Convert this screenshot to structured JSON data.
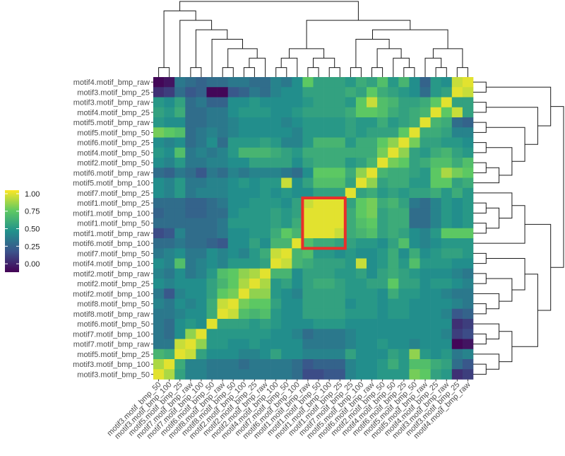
{
  "chart_data": {
    "type": "heatmap",
    "title": "",
    "row_labels": [
      "motif4.motif_bmp_raw",
      "motif3.motif_bmp_25",
      "motif3.motif_bmp_raw",
      "motif4.motif_bmp_25",
      "motif5.motif_bmp_raw",
      "motif5.motif_bmp_50",
      "motif6.motif_bmp_25",
      "motif4.motif_bmp_50",
      "motif2.motif_bmp_50",
      "motif6.motif_bmp_raw",
      "motif5.motif_bmp_100",
      "motif7.motif_bmp_25",
      "motif1.motif_bmp_25",
      "motif1.motif_bmp_100",
      "motif1.motif_bmp_50",
      "motif1.motif_bmp_raw",
      "motif6.motif_bmp_100",
      "motif7.motif_bmp_50",
      "motif4.motif_bmp_100",
      "motif2.motif_bmp_raw",
      "motif2.motif_bmp_25",
      "motif2.motif_bmp_100",
      "motif8.motif_bmp_50",
      "motif8.motif_bmp_raw",
      "motif6.motif_bmp_50",
      "motif7.motif_bmp_100",
      "motif7.motif_bmp_raw",
      "motif5.motif_bmp_25",
      "motif3.motif_bmp_100",
      "motif3.motif_bmp_50"
    ],
    "col_labels": [
      "motif3.motif_bmp_50",
      "motif3.motif_bmp_100",
      "motif5.motif_bmp_25",
      "motif7.motif_bmp_raw",
      "motif7.motif_bmp_100",
      "motif6.motif_bmp_50",
      "motif8.motif_bmp_raw",
      "motif8.motif_bmp_50",
      "motif2.motif_bmp_100",
      "motif2.motif_bmp_25",
      "motif2.motif_bmp_raw",
      "motif4.motif_bmp_100",
      "motif7.motif_bmp_50",
      "motif6.motif_bmp_100",
      "motif1.motif_bmp_raw",
      "motif1.motif_bmp_50",
      "motif1.motif_bmp_100",
      "motif1.motif_bmp_25",
      "motif7.motif_bmp_25",
      "motif5.motif_bmp_100",
      "motif6.motif_bmp_raw",
      "motif2.motif_bmp_50",
      "motif4.motif_bmp_50",
      "motif6.motif_bmp_25",
      "motif5.motif_bmp_50",
      "motif5.motif_bmp_raw",
      "motif4.motif_bmp_25",
      "motif3.motif_bmp_raw",
      "motif3.motif_bmp_25",
      "motif4.motif_bmp_raw"
    ],
    "values": [
      [
        -0.1,
        -0.05,
        0.35,
        0.3,
        0.25,
        0.3,
        0.3,
        0.35,
        0.35,
        0.3,
        0.3,
        0.4,
        0.35,
        0.45,
        0.75,
        0.55,
        0.55,
        0.55,
        0.5,
        0.6,
        0.55,
        0.7,
        0.5,
        0.65,
        0.45,
        0.25,
        0.5,
        0.45,
        0.95,
        1
      ],
      [
        0.05,
        0.1,
        0.3,
        0.2,
        0.25,
        -0.1,
        -0.1,
        0.2,
        0.25,
        0.35,
        0.3,
        0.4,
        0.45,
        0.45,
        0.55,
        0.55,
        0.55,
        0.55,
        0.6,
        0.55,
        0.75,
        0.6,
        0.55,
        0.5,
        0.45,
        0.3,
        0.5,
        0.55,
        1,
        0.95
      ],
      [
        0.5,
        0.45,
        0.55,
        0.3,
        0.35,
        0.25,
        0.25,
        0.45,
        0.45,
        0.5,
        0.45,
        0.45,
        0.45,
        0.45,
        0.5,
        0.55,
        0.55,
        0.55,
        0.5,
        0.75,
        0.95,
        0.7,
        0.65,
        0.55,
        0.55,
        0.6,
        0.75,
        1,
        0.55,
        0.55
      ],
      [
        0.55,
        0.5,
        0.6,
        0.3,
        0.3,
        0.35,
        0.35,
        0.45,
        0.5,
        0.5,
        0.5,
        0.45,
        0.45,
        0.5,
        0.55,
        0.55,
        0.55,
        0.55,
        0.6,
        0.75,
        0.75,
        0.7,
        0.6,
        0.55,
        0.6,
        0.65,
        1,
        0.75,
        0.95,
        0.55
      ],
      [
        0.5,
        0.45,
        0.45,
        0.3,
        0.3,
        0.35,
        0.35,
        0.4,
        0.45,
        0.45,
        0.45,
        0.45,
        0.4,
        0.45,
        0.5,
        0.5,
        0.5,
        0.5,
        0.55,
        0.5,
        0.5,
        0.6,
        0.5,
        0.55,
        0.6,
        1,
        0.65,
        0.6,
        0.3,
        0.25
      ],
      [
        0.8,
        0.75,
        0.7,
        0.3,
        0.35,
        0.4,
        0.35,
        0.4,
        0.45,
        0.45,
        0.45,
        0.45,
        0.45,
        0.4,
        0.5,
        0.5,
        0.5,
        0.5,
        0.55,
        0.5,
        0.55,
        0.55,
        0.55,
        0.75,
        1,
        0.6,
        0.6,
        0.55,
        0.4,
        0.4
      ],
      [
        0.45,
        0.4,
        0.45,
        0.3,
        0.35,
        0.45,
        0.3,
        0.5,
        0.5,
        0.5,
        0.55,
        0.5,
        0.4,
        0.4,
        0.5,
        0.65,
        0.65,
        0.65,
        0.5,
        0.6,
        0.6,
        0.75,
        0.85,
        1,
        0.8,
        0.55,
        0.55,
        0.5,
        0.5,
        0.45
      ],
      [
        0.5,
        0.45,
        0.7,
        0.35,
        0.4,
        0.35,
        0.4,
        0.5,
        0.65,
        0.65,
        0.65,
        0.6,
        0.55,
        0.5,
        0.6,
        0.6,
        0.6,
        0.6,
        0.6,
        0.6,
        0.6,
        0.8,
        1,
        0.85,
        0.55,
        0.5,
        0.6,
        0.65,
        0.55,
        0.5
      ],
      [
        0.45,
        0.4,
        0.5,
        0.35,
        0.35,
        0.4,
        0.4,
        0.45,
        0.45,
        0.55,
        0.55,
        0.55,
        0.55,
        0.45,
        0.55,
        0.6,
        0.6,
        0.6,
        0.5,
        0.55,
        0.65,
        1,
        0.8,
        0.75,
        0.55,
        0.6,
        0.7,
        0.7,
        0.6,
        0.7
      ],
      [
        0.3,
        0.25,
        0.35,
        0.3,
        0.2,
        0.35,
        0.3,
        0.4,
        0.35,
        0.4,
        0.4,
        0.4,
        0.35,
        0.3,
        0.45,
        0.75,
        0.75,
        0.75,
        0.6,
        0.85,
        1,
        0.65,
        0.6,
        0.6,
        0.55,
        0.5,
        0.75,
        0.9,
        0.8,
        0.75
      ],
      [
        0.45,
        0.4,
        0.5,
        0.35,
        0.35,
        0.4,
        0.4,
        0.45,
        0.5,
        0.45,
        0.5,
        0.5,
        0.95,
        0.45,
        0.55,
        0.7,
        0.7,
        0.7,
        0.55,
        1,
        0.85,
        0.55,
        0.6,
        0.6,
        0.5,
        0.5,
        0.75,
        0.75,
        0.55,
        0.6
      ],
      [
        0.45,
        0.4,
        0.5,
        0.35,
        0.4,
        0.4,
        0.4,
        0.45,
        0.45,
        0.45,
        0.5,
        0.45,
        0.5,
        0.45,
        0.45,
        0.55,
        0.55,
        0.55,
        1,
        0.55,
        0.6,
        0.5,
        0.55,
        0.5,
        0.55,
        0.55,
        0.6,
        0.5,
        0.6,
        0.5
      ],
      [
        0.3,
        0.3,
        0.3,
        0.25,
        0.25,
        0.3,
        0.35,
        0.45,
        0.45,
        0.5,
        0.5,
        0.5,
        0.45,
        0.55,
        0.95,
        1,
        1,
        1,
        0.55,
        0.75,
        0.8,
        0.6,
        0.65,
        0.55,
        0.35,
        0.3,
        0.4,
        0.5,
        0.45,
        0.5
      ],
      [
        0.25,
        0.3,
        0.3,
        0.25,
        0.25,
        0.3,
        0.3,
        0.45,
        0.5,
        0.5,
        0.5,
        0.55,
        0.5,
        0.55,
        1,
        1,
        1,
        1,
        0.6,
        0.75,
        0.8,
        0.55,
        0.6,
        0.6,
        0.3,
        0.3,
        0.4,
        0.5,
        0.45,
        0.5
      ],
      [
        0.3,
        0.3,
        0.3,
        0.3,
        0.3,
        0.3,
        0.35,
        0.5,
        0.5,
        0.5,
        0.5,
        0.55,
        0.5,
        0.6,
        1,
        1,
        1,
        1,
        0.6,
        0.7,
        0.75,
        0.55,
        0.6,
        0.6,
        0.3,
        0.3,
        0.4,
        0.5,
        0.45,
        0.5
      ],
      [
        0.15,
        0.2,
        0.4,
        0.3,
        0.3,
        0.3,
        0.35,
        0.45,
        0.45,
        0.5,
        0.5,
        0.6,
        0.75,
        0.65,
        1,
        1,
        1,
        0.95,
        0.6,
        0.65,
        0.7,
        0.55,
        0.6,
        0.55,
        0.45,
        0.4,
        0.5,
        0.75,
        0.75,
        0.75
      ],
      [
        0.3,
        0.3,
        0.35,
        0.3,
        0.3,
        0.25,
        0.2,
        0.45,
        0.45,
        0.55,
        0.45,
        0.65,
        0.65,
        1,
        0.7,
        0.6,
        0.6,
        0.55,
        0.55,
        0.5,
        0.5,
        0.45,
        0.55,
        0.7,
        0.45,
        0.4,
        0.45,
        0.5,
        0.5,
        0.5
      ],
      [
        0.35,
        0.4,
        0.45,
        0.35,
        0.35,
        0.45,
        0.4,
        0.45,
        0.4,
        0.5,
        0.6,
        0.95,
        1,
        0.65,
        0.7,
        0.5,
        0.5,
        0.45,
        0.5,
        0.45,
        0.45,
        0.5,
        0.6,
        0.45,
        0.6,
        0.45,
        0.5,
        0.55,
        0.55,
        0.5
      ],
      [
        0.45,
        0.4,
        0.7,
        0.35,
        0.4,
        0.45,
        0.4,
        0.5,
        0.5,
        0.5,
        0.55,
        1,
        0.95,
        0.65,
        0.6,
        0.55,
        0.55,
        0.55,
        0.5,
        0.95,
        0.45,
        0.5,
        0.6,
        0.5,
        0.7,
        0.5,
        0.5,
        0.5,
        0.45,
        0.45
      ],
      [
        0.4,
        0.35,
        0.45,
        0.35,
        0.4,
        0.5,
        0.7,
        0.75,
        0.85,
        0.9,
        1,
        0.65,
        0.65,
        0.45,
        0.55,
        0.55,
        0.55,
        0.5,
        0.5,
        0.55,
        0.45,
        0.55,
        0.6,
        0.55,
        0.5,
        0.45,
        0.45,
        0.45,
        0.4,
        0.35
      ],
      [
        0.45,
        0.4,
        0.45,
        0.45,
        0.45,
        0.55,
        0.65,
        0.75,
        0.9,
        1,
        0.9,
        0.5,
        0.55,
        0.45,
        0.55,
        0.6,
        0.6,
        0.55,
        0.5,
        0.5,
        0.55,
        0.55,
        0.75,
        0.55,
        0.55,
        0.45,
        0.5,
        0.5,
        0.45,
        0.4
      ],
      [
        0.35,
        0.2,
        0.4,
        0.45,
        0.45,
        0.55,
        0.75,
        0.8,
        1,
        0.85,
        0.85,
        0.5,
        0.45,
        0.4,
        0.55,
        0.55,
        0.55,
        0.55,
        0.5,
        0.5,
        0.5,
        0.45,
        0.6,
        0.5,
        0.5,
        0.45,
        0.45,
        0.4,
        0.35,
        0.35
      ],
      [
        0.4,
        0.35,
        0.45,
        0.4,
        0.45,
        0.6,
        0.95,
        1,
        0.8,
        0.75,
        0.75,
        0.55,
        0.45,
        0.45,
        0.55,
        0.55,
        0.55,
        0.55,
        0.45,
        0.5,
        0.5,
        0.45,
        0.5,
        0.5,
        0.45,
        0.45,
        0.45,
        0.45,
        0.4,
        0.35
      ],
      [
        0.35,
        0.35,
        0.4,
        0.45,
        0.45,
        0.6,
        1,
        0.95,
        0.7,
        0.65,
        0.7,
        0.5,
        0.45,
        0.45,
        0.55,
        0.55,
        0.55,
        0.55,
        0.5,
        0.5,
        0.5,
        0.45,
        0.5,
        0.5,
        0.45,
        0.45,
        0.45,
        0.4,
        0.2,
        0.25
      ],
      [
        0.35,
        0.3,
        0.45,
        0.5,
        0.45,
        1,
        0.55,
        0.55,
        0.55,
        0.5,
        0.55,
        0.5,
        0.45,
        0.45,
        0.45,
        0.5,
        0.5,
        0.5,
        0.45,
        0.45,
        0.45,
        0.45,
        0.45,
        0.45,
        0.45,
        0.45,
        0.45,
        0.45,
        0.05,
        0.1
      ],
      [
        0.35,
        0.3,
        0.45,
        0.85,
        1,
        0.5,
        0.5,
        0.5,
        0.5,
        0.5,
        0.5,
        0.45,
        0.45,
        0.4,
        0.3,
        0.35,
        0.35,
        0.35,
        0.4,
        0.45,
        0.45,
        0.45,
        0.45,
        0.45,
        0.45,
        0.45,
        0.45,
        0.4,
        0.1,
        0.15
      ],
      [
        0.35,
        0.35,
        0.95,
        1,
        0.85,
        0.5,
        0.5,
        0.45,
        0.45,
        0.5,
        0.45,
        0.45,
        0.45,
        0.45,
        0.35,
        0.35,
        0.35,
        0.35,
        0.4,
        0.45,
        0.45,
        0.5,
        0.45,
        0.45,
        0.4,
        0.45,
        0.45,
        0.45,
        -0.1,
        -0.05
      ],
      [
        0.65,
        0.6,
        1,
        0.95,
        0.55,
        0.45,
        0.45,
        0.45,
        0.4,
        0.4,
        0.45,
        0.55,
        0.45,
        0.45,
        0.4,
        0.4,
        0.4,
        0.4,
        0.55,
        0.45,
        0.45,
        0.45,
        0.55,
        0.5,
        0.85,
        0.5,
        0.45,
        0.5,
        0.35,
        0.4
      ],
      [
        0.9,
        1,
        0.6,
        0.4,
        0.4,
        0.35,
        0.35,
        0.35,
        0.3,
        0.35,
        0.35,
        0.35,
        0.35,
        0.3,
        0.2,
        0.25,
        0.25,
        0.25,
        0.4,
        0.45,
        0.45,
        0.5,
        0.6,
        0.5,
        0.7,
        0.7,
        0.6,
        0.55,
        0.3,
        0.2
      ],
      [
        1,
        0.9,
        0.55,
        0.4,
        0.4,
        0.35,
        0.35,
        0.35,
        0.35,
        0.35,
        0.35,
        0.35,
        0.35,
        0.3,
        0.15,
        0.15,
        0.2,
        0.2,
        0.4,
        0.45,
        0.45,
        0.5,
        0.5,
        0.5,
        0.8,
        0.75,
        0.55,
        0.5,
        0.05,
        0.1
      ]
    ],
    "legend": {
      "ticks": [
        "1.00",
        "0.75",
        "0.50",
        "0.25",
        "0.00"
      ],
      "tick_values": [
        1.0,
        0.75,
        0.5,
        0.25,
        0.0
      ],
      "range": [
        -0.12,
        1.05
      ],
      "placement": "left"
    },
    "colorscale": [
      "#440154",
      "#3b528b",
      "#21918c",
      "#5ec962",
      "#fde725"
    ],
    "highlight": {
      "rows": [
        12,
        16
      ],
      "cols": [
        14,
        17
      ],
      "color": "#e8302a"
    },
    "dendrograms": [
      "top",
      "right"
    ]
  }
}
